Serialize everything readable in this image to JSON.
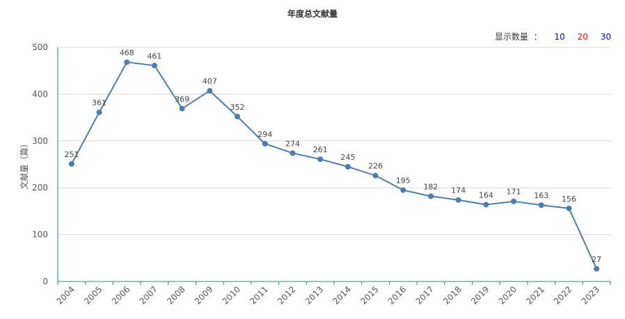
{
  "controls": {
    "label": "显示数量",
    "separator": "：",
    "options": [
      {
        "label": "10",
        "color": "#0000ff"
      },
      {
        "label": "20",
        "color": "#ff0000"
      },
      {
        "label": "30",
        "color": "#0000ff"
      }
    ]
  },
  "colors": {
    "line": "#4a7eb0",
    "xaxis": "#1a8f7a",
    "grid": "#d8d8d8"
  },
  "chart_data": {
    "type": "line",
    "title": "年度总文献量",
    "xlabel": "",
    "ylabel": "文献量（篇）",
    "ylim": [
      0,
      500
    ],
    "yticks": [
      0,
      100,
      200,
      300,
      400,
      500
    ],
    "grid": true,
    "categories": [
      "2004",
      "2005",
      "2006",
      "2007",
      "2008",
      "2009",
      "2010",
      "2011",
      "2012",
      "2013",
      "2014",
      "2015",
      "2016",
      "2017",
      "2018",
      "2019",
      "2020",
      "2021",
      "2022",
      "2023"
    ],
    "series": [
      {
        "values": [
          251,
          361,
          468,
          461,
          369,
          407,
          352,
          294,
          274,
          261,
          245,
          226,
          195,
          182,
          174,
          164,
          171,
          163,
          156,
          27
        ]
      }
    ]
  }
}
